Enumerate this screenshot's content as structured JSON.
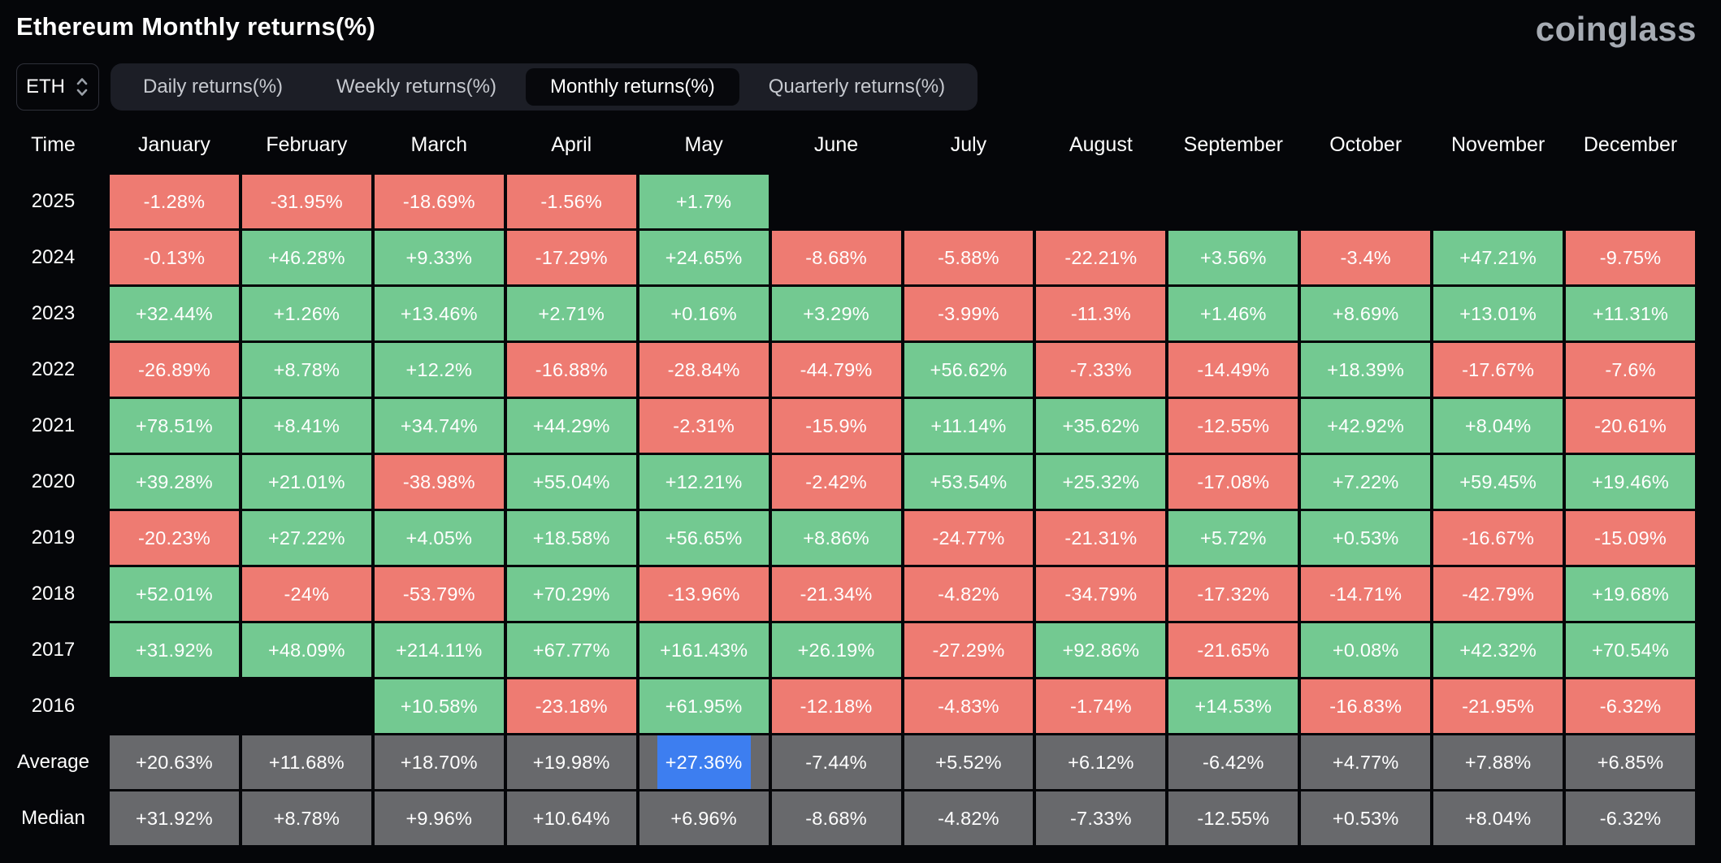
{
  "page": {
    "title": "Ethereum Monthly returns(%)",
    "brand": "coinglass"
  },
  "controls": {
    "symbol_select": {
      "value": "ETH",
      "icon": "updown-chevron-icon"
    },
    "tabs": [
      {
        "id": "daily",
        "label": "Daily returns(%)",
        "active": false
      },
      {
        "id": "weekly",
        "label": "Weekly returns(%)",
        "active": false
      },
      {
        "id": "monthly",
        "label": "Monthly returns(%)",
        "active": true
      },
      {
        "id": "quarterly",
        "label": "Quarterly returns(%)",
        "active": false
      }
    ]
  },
  "colors": {
    "bg": "#050609",
    "pos": "#73c991",
    "neg": "#ee7b72",
    "neutral": "#68696c",
    "highlight": "#3d7ef0",
    "tabbar": "#1c1e26",
    "tabactive": "#07080c",
    "text": "#ffffff",
    "muted": "#c6c9cf",
    "brand": "#a6abb3",
    "border": "#2e3039"
  },
  "chart_data": {
    "type": "heatmap",
    "title": "Ethereum Monthly returns(%)",
    "unit": "%",
    "legend": "green = positive monthly return, red = negative monthly return, gray = Average/Median summary rows",
    "columns": [
      "Time",
      "January",
      "February",
      "March",
      "April",
      "May",
      "June",
      "July",
      "August",
      "September",
      "October",
      "November",
      "December"
    ],
    "rows": [
      {
        "label": "2025",
        "values": [
          "-1.28%",
          "-31.95%",
          "-18.69%",
          "-1.56%",
          "+1.7%",
          "",
          "",
          "",
          "",
          "",
          "",
          ""
        ]
      },
      {
        "label": "2024",
        "values": [
          "-0.13%",
          "+46.28%",
          "+9.33%",
          "-17.29%",
          "+24.65%",
          "-8.68%",
          "-5.88%",
          "-22.21%",
          "+3.56%",
          "-3.4%",
          "+47.21%",
          "-9.75%"
        ]
      },
      {
        "label": "2023",
        "values": [
          "+32.44%",
          "+1.26%",
          "+13.46%",
          "+2.71%",
          "+0.16%",
          "+3.29%",
          "-3.99%",
          "-11.3%",
          "+1.46%",
          "+8.69%",
          "+13.01%",
          "+11.31%"
        ]
      },
      {
        "label": "2022",
        "values": [
          "-26.89%",
          "+8.78%",
          "+12.2%",
          "-16.88%",
          "-28.84%",
          "-44.79%",
          "+56.62%",
          "-7.33%",
          "-14.49%",
          "+18.39%",
          "-17.67%",
          "-7.6%"
        ]
      },
      {
        "label": "2021",
        "values": [
          "+78.51%",
          "+8.41%",
          "+34.74%",
          "+44.29%",
          "-2.31%",
          "-15.9%",
          "+11.14%",
          "+35.62%",
          "-12.55%",
          "+42.92%",
          "+8.04%",
          "-20.61%"
        ]
      },
      {
        "label": "2020",
        "values": [
          "+39.28%",
          "+21.01%",
          "-38.98%",
          "+55.04%",
          "+12.21%",
          "-2.42%",
          "+53.54%",
          "+25.32%",
          "-17.08%",
          "+7.22%",
          "+59.45%",
          "+19.46%"
        ]
      },
      {
        "label": "2019",
        "values": [
          "-20.23%",
          "+27.22%",
          "+4.05%",
          "+18.58%",
          "+56.65%",
          "+8.86%",
          "-24.77%",
          "-21.31%",
          "+5.72%",
          "+0.53%",
          "-16.67%",
          "-15.09%"
        ]
      },
      {
        "label": "2018",
        "values": [
          "+52.01%",
          "-24%",
          "-53.79%",
          "+70.29%",
          "-13.96%",
          "-21.34%",
          "-4.82%",
          "-34.79%",
          "-17.32%",
          "-14.71%",
          "-42.79%",
          "+19.68%"
        ]
      },
      {
        "label": "2017",
        "values": [
          "+31.92%",
          "+48.09%",
          "+214.11%",
          "+67.77%",
          "+161.43%",
          "+26.19%",
          "-27.29%",
          "+92.86%",
          "-21.65%",
          "+0.08%",
          "+42.32%",
          "+70.54%"
        ]
      },
      {
        "label": "2016",
        "values": [
          "",
          "",
          "+10.58%",
          "-23.18%",
          "+61.95%",
          "-12.18%",
          "-4.83%",
          "-1.74%",
          "+14.53%",
          "-16.83%",
          "-21.95%",
          "-6.32%"
        ]
      },
      {
        "label": "Average",
        "neutral": true,
        "values": [
          "+20.63%",
          "+11.68%",
          "+18.70%",
          "+19.98%",
          "+27.36%",
          "-7.44%",
          "+5.52%",
          "+6.12%",
          "-6.42%",
          "+4.77%",
          "+7.88%",
          "+6.85%"
        ]
      },
      {
        "label": "Median",
        "neutral": true,
        "values": [
          "+31.92%",
          "+8.78%",
          "+9.96%",
          "+10.64%",
          "+6.96%",
          "-8.68%",
          "-4.82%",
          "-7.33%",
          "-12.55%",
          "+0.53%",
          "+8.04%",
          "-6.32%"
        ]
      }
    ],
    "highlight": {
      "row": "Average",
      "col": 4,
      "column": "May",
      "value": "+27.36%"
    }
  }
}
